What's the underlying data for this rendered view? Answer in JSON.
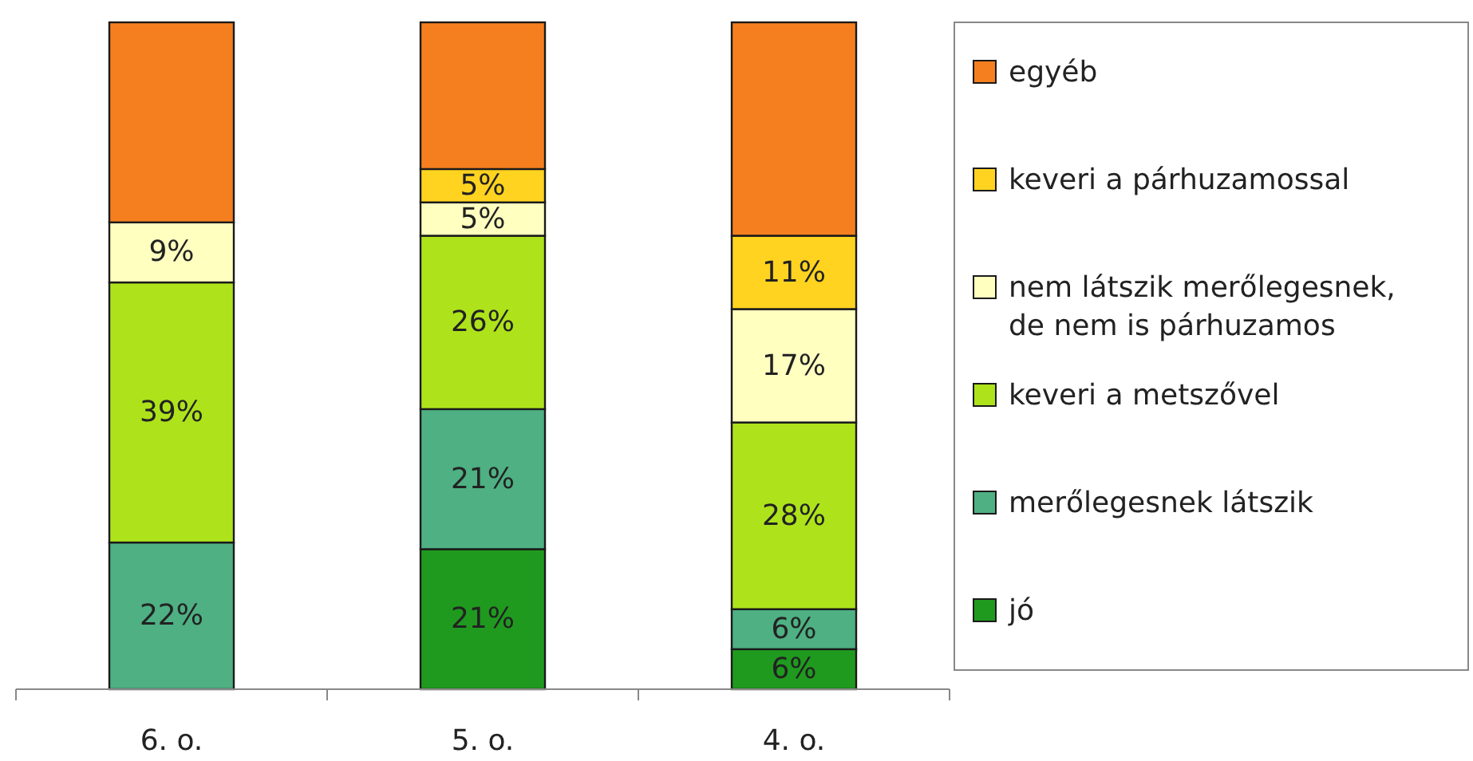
{
  "chart_data": {
    "type": "bar",
    "stacked": true,
    "categories": [
      "6. o.",
      "5. o.",
      "4. o."
    ],
    "series": [
      {
        "name": "jó",
        "color": "#1f9a1f",
        "values": [
          null,
          21,
          6
        ],
        "value_labels": [
          null,
          "21%",
          "6%"
        ]
      },
      {
        "name": "merőlegesnek látszik",
        "color": "#4eb083",
        "values": [
          22,
          21,
          6
        ],
        "value_labels": [
          "22%",
          "21%",
          "6%"
        ]
      },
      {
        "name": "keveri a metszővel",
        "color": "#aee31c",
        "values": [
          39,
          26,
          28
        ],
        "value_labels": [
          "39%",
          "26%",
          "28%"
        ]
      },
      {
        "name": "nem látszik merőlegesnek, de nem is párhuzamos",
        "color": "#ffffc0",
        "values": [
          9,
          5,
          17
        ],
        "value_labels": [
          "9%",
          "5%",
          "17%"
        ]
      },
      {
        "name": "keveri a párhuzamossal",
        "color": "#ffd320",
        "values": [
          null,
          5,
          11
        ],
        "value_labels": [
          null,
          "5%",
          "11%"
        ]
      },
      {
        "name": "egyéb",
        "color": "#f57f1e",
        "values": [
          30,
          22,
          32
        ],
        "value_labels": [
          null,
          null,
          null
        ]
      }
    ],
    "legend": "right"
  }
}
